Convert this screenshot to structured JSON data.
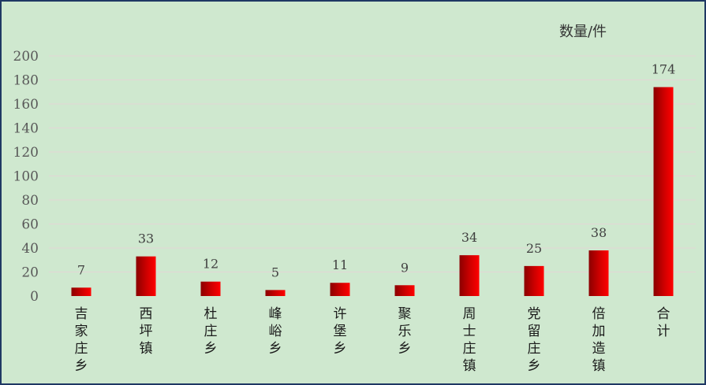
{
  "chart_data": {
    "type": "bar",
    "unit_label": "数量/件",
    "categories": [
      "吉家庄乡",
      "西坪镇",
      "杜庄乡",
      "峰峪乡",
      "许堡乡",
      "聚乐乡",
      "周士庄镇",
      "党留庄乡",
      "倍加造镇",
      "合计"
    ],
    "series": [
      {
        "values": [
          7,
          33,
          12,
          5,
          11,
          9,
          34,
          25,
          38,
          174
        ]
      }
    ],
    "ylim": [
      0,
      200
    ],
    "yticks": [
      0,
      20,
      40,
      60,
      80,
      100,
      120,
      140,
      160,
      180,
      200
    ],
    "grid": true,
    "data_labels": true,
    "colors": {
      "bar_dark": "#8b0000",
      "bar_bright": "#ff0000",
      "background": "#cfe8cf",
      "border": "#1f3864"
    }
  }
}
